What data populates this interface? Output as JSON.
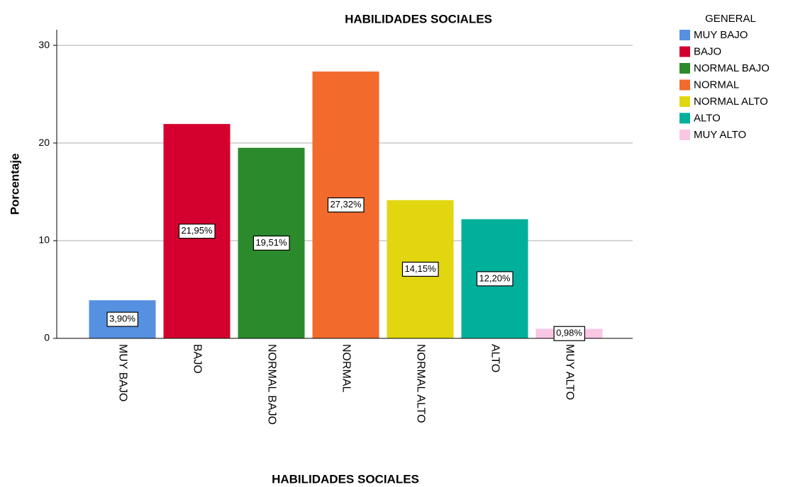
{
  "chart_data": {
    "type": "bar",
    "title": "HABILIDADES SOCIALES",
    "x_label": "HABILIDADES SOCIALES",
    "y_label": "Porcentaje",
    "legend_title": "GENERAL",
    "legend_position": "right",
    "categories": [
      "MUY BAJO",
      "BAJO",
      "NORMAL BAJO",
      "NORMAL",
      "NORMAL ALTO",
      "ALTO",
      "MUY ALTO"
    ],
    "values": [
      3.9,
      21.95,
      19.51,
      27.32,
      14.15,
      12.2,
      0.98
    ],
    "value_labels": [
      "3,90%",
      "21,95%",
      "19,51%",
      "27,32%",
      "14,15%",
      "12,20%",
      "0,98%"
    ],
    "colors": [
      "#5591e0",
      "#d4002e",
      "#2b8a2b",
      "#f26b2d",
      "#e2d610",
      "#00b09b",
      "#f9c6e4"
    ],
    "ylim": [
      0,
      31.6
    ],
    "yticks": [
      0,
      10,
      20,
      30
    ],
    "grid": true
  }
}
